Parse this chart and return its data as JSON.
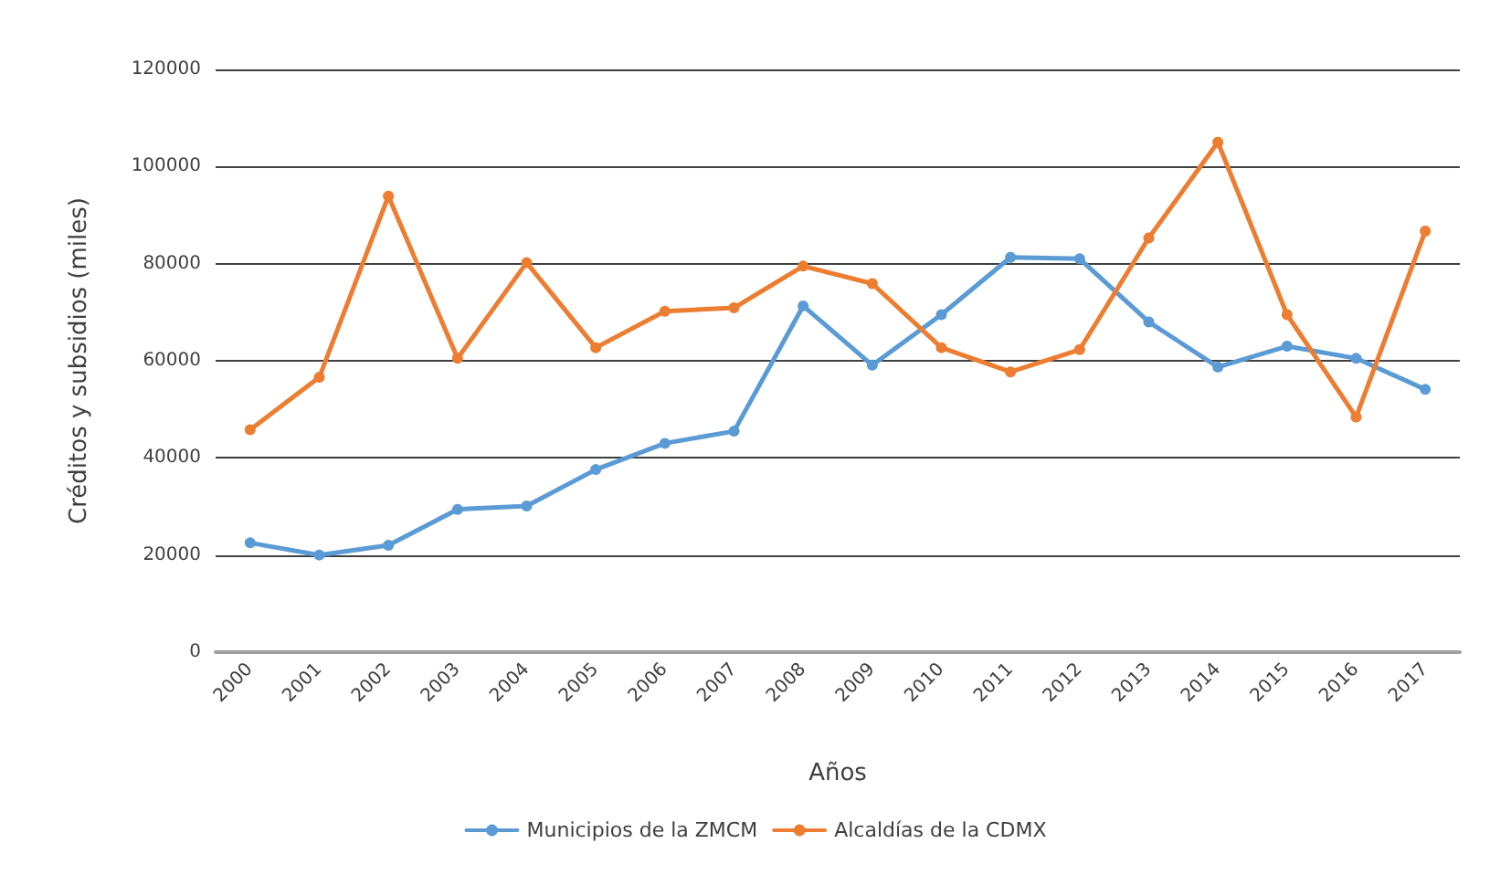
{
  "chart_data": {
    "type": "line",
    "xlabel": "Años",
    "ylabel": "Créditos y subsidios (miles)",
    "categories": [
      "2000",
      "2001",
      "2002",
      "2003",
      "2004",
      "2005",
      "2006",
      "2007",
      "2008",
      "2009",
      "2010",
      "2011",
      "2012",
      "2013",
      "2014",
      "2015",
      "2016",
      "2017"
    ],
    "series": [
      {
        "name": "Municipios de la ZMCM",
        "color": "#5b9bd5",
        "values": [
          22500,
          20000,
          22000,
          29400,
          30100,
          37600,
          43000,
          45500,
          71300,
          59100,
          69500,
          81300,
          81000,
          68000,
          58700,
          63000,
          60500,
          54100
        ]
      },
      {
        "name": "Alcaldías de la CDMX",
        "color": "#ed7d31",
        "values": [
          45800,
          56600,
          93900,
          60500,
          80200,
          62700,
          70200,
          70900,
          79500,
          75900,
          62700,
          57700,
          62300,
          85300,
          105000,
          69500,
          48400,
          86700
        ]
      }
    ],
    "ylim": [
      0,
      120000
    ],
    "yticks": [
      0,
      20000,
      40000,
      60000,
      80000,
      100000,
      120000
    ],
    "grid": "y",
    "legend": "bottom",
    "marker": "circle",
    "line_style": "solid"
  }
}
